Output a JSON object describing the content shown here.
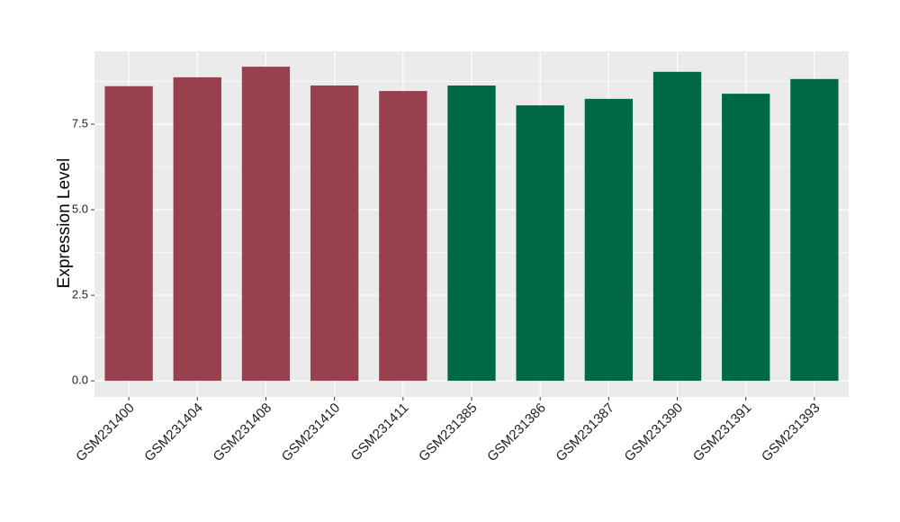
{
  "chart_data": {
    "type": "bar",
    "y_label": "Expression Level",
    "categories": [
      "GSM231400",
      "GSM231404",
      "GSM231408",
      "GSM231410",
      "GSM231411",
      "GSM231385",
      "GSM231386",
      "GSM231387",
      "GSM231390",
      "GSM231391",
      "GSM231393"
    ],
    "values": [
      8.61,
      8.87,
      9.18,
      8.63,
      8.47,
      8.63,
      8.05,
      8.24,
      9.03,
      8.39,
      8.82
    ],
    "colors": [
      "#99404f",
      "#99404f",
      "#99404f",
      "#99404f",
      "#99404f",
      "#006845",
      "#006845",
      "#006845",
      "#006845",
      "#006845",
      "#006845"
    ],
    "ylim": [
      -0.47,
      9.63
    ],
    "yticks": [
      {
        "value": 0,
        "label": "0.0"
      },
      {
        "value": 2.5,
        "label": "2.5"
      },
      {
        "value": 5,
        "label": "5.0"
      },
      {
        "value": 7.5,
        "label": "7.5"
      }
    ],
    "grid": true
  }
}
